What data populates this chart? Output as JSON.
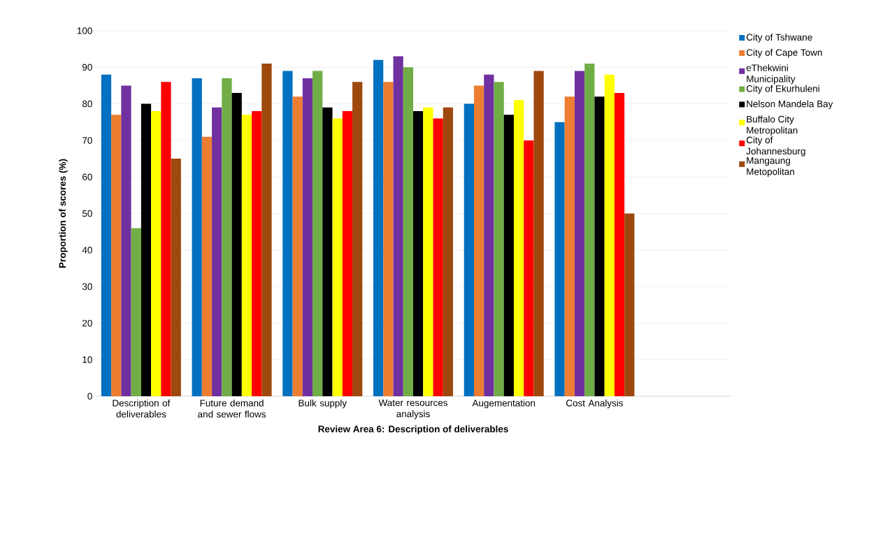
{
  "chart_data": {
    "type": "bar",
    "xlabel": "Review Area 6: Description of deliverables",
    "ylabel": "Proportion of scores (%)",
    "categories": [
      "Description of deliverables",
      "Future demand and sewer flows",
      "Bulk supply",
      "Water resources analysis",
      "Augementation",
      "Cost Analysis",
      null
    ],
    "series": [
      {
        "name": "City of Tshwane",
        "color": "#0070c0",
        "values": [
          88,
          87,
          89,
          92,
          80,
          75,
          null
        ]
      },
      {
        "name": "City of Cape Town",
        "color": "#ed7d31",
        "values": [
          77,
          71,
          82,
          86,
          85,
          82,
          null
        ]
      },
      {
        "name": "eThekwini Municipality",
        "color": "#7030a0",
        "values": [
          85,
          79,
          87,
          93,
          88,
          89,
          null
        ]
      },
      {
        "name": "City of Ekurhuleni",
        "color": "#70ad47",
        "values": [
          46,
          87,
          89,
          90,
          86,
          91,
          null
        ]
      },
      {
        "name": "Nelson Mandela Bay",
        "color": "#000000",
        "values": [
          80,
          83,
          79,
          78,
          77,
          82,
          null
        ]
      },
      {
        "name": "Buffalo City Metropolitan",
        "color": "#ffff00",
        "values": [
          78,
          77,
          76,
          79,
          81,
          88,
          null
        ]
      },
      {
        "name": "City of Johannesburg",
        "color": "#ff0000",
        "values": [
          86,
          78,
          78,
          76,
          70,
          83,
          null
        ]
      },
      {
        "name": "Mangaung Metopolitan",
        "color": "#9e480e",
        "values": [
          65,
          91,
          86,
          79,
          89,
          50,
          null
        ]
      }
    ],
    "ylim": [
      0,
      100
    ],
    "yticks": [
      0,
      10,
      20,
      30,
      40,
      50,
      60,
      70,
      80,
      90,
      100
    ],
    "grid": "y",
    "legend": "right"
  }
}
